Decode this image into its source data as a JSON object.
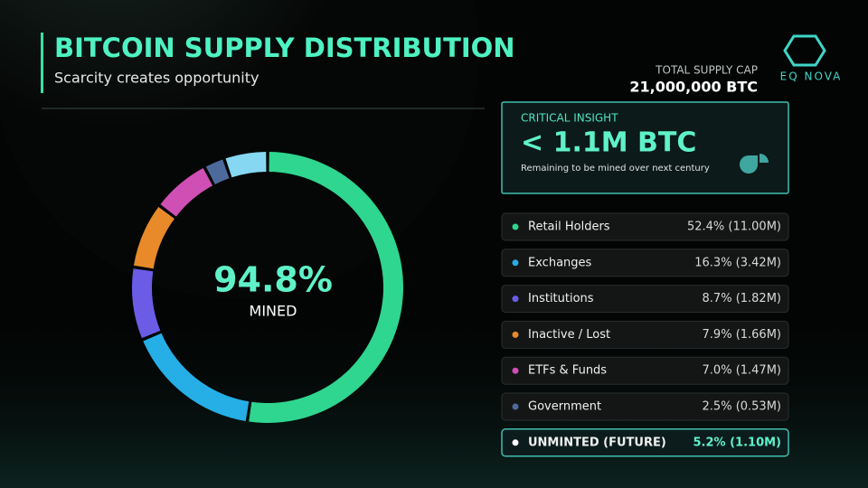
{
  "header": {
    "title": "BITCOIN SUPPLY DISTRIBUTION",
    "subtitle": "Scarcity creates opportunity"
  },
  "logo": "EQ NOVA",
  "supply_cap": {
    "label": "TOTAL SUPPLY CAP",
    "value": "21,000,000 BTC"
  },
  "insight": {
    "label": "CRITICAL INSIGHT",
    "value": "< 1.1M BTC",
    "note": "Remaining to be mined over next century"
  },
  "chart_data": {
    "type": "donut",
    "center_value": "94.8%",
    "center_label": "MINED",
    "categories": [
      "Retail Holders",
      "Exchanges",
      "Institutions",
      "Inactive / Lost",
      "ETFs & Funds",
      "Government",
      "UNMINTED (FUTURE)"
    ],
    "values": [
      52.4,
      16.3,
      8.7,
      7.9,
      7.0,
      2.5,
      5.2
    ],
    "value_labels": [
      "52.4% (11.00M)",
      "16.3% (3.42M)",
      "8.7% (1.82M)",
      "7.9% (1.66M)",
      "7.0% (1.47M)",
      "2.5% (0.53M)",
      "5.2% (1.10M)"
    ],
    "colors": [
      "#2fd68f",
      "#26aee6",
      "#6b5ce6",
      "#e8892a",
      "#cf4fb4",
      "#4d6a9c",
      "#86d8f2"
    ]
  }
}
